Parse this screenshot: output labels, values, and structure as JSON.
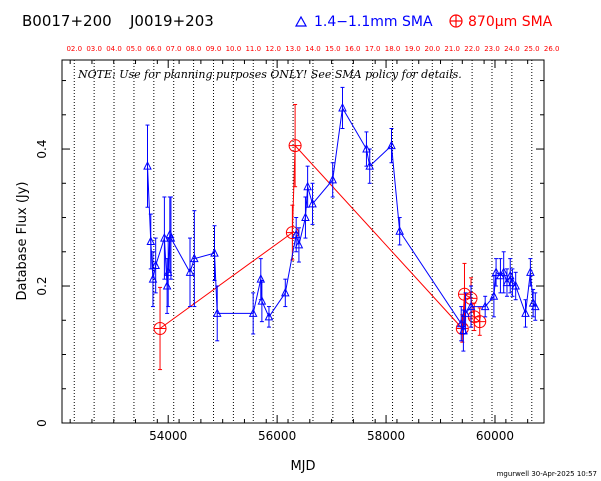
{
  "header": {
    "source1": "B0017+200",
    "source2": "J0019+203",
    "legend_blue": "1.4−1.1mm SMA",
    "legend_red": "870µm SMA"
  },
  "note": "NOTE: Use for planning purposes ONLY! See SMA policy for details.",
  "footer": "mgurwell 30-Apr-2025 10:57",
  "colors": {
    "blue": "#0000ff",
    "red": "#ff0000",
    "axis": "#000000"
  },
  "chart_data": {
    "type": "scatter",
    "xlabel": "MJD",
    "ylabel": "Database Flux (Jy)",
    "xlim": [
      52050,
      60900
    ],
    "ylim": [
      0,
      0.53
    ],
    "x_ticks": [
      54000,
      56000,
      58000,
      60000
    ],
    "y_ticks": [
      0,
      0.2,
      0.4
    ],
    "y_tick_labels": [
      "0",
      "0.2",
      "0.4"
    ],
    "x_tick_labels": [
      "54000",
      "56000",
      "58000",
      "60000"
    ],
    "top_axis_labels": [
      {
        "mjd": 52275,
        "label": "02.0"
      },
      {
        "mjd": 52640,
        "label": "03.0"
      },
      {
        "mjd": 53005,
        "label": "04.0"
      },
      {
        "mjd": 53371,
        "label": "05.0"
      },
      {
        "mjd": 53736,
        "label": "06.0"
      },
      {
        "mjd": 54101,
        "label": "07.0"
      },
      {
        "mjd": 54466,
        "label": "08.0"
      },
      {
        "mjd": 54832,
        "label": "09.0"
      },
      {
        "mjd": 55197,
        "label": "10.0"
      },
      {
        "mjd": 55562,
        "label": "11.0"
      },
      {
        "mjd": 55927,
        "label": "12.0"
      },
      {
        "mjd": 56293,
        "label": "13.0"
      },
      {
        "mjd": 56658,
        "label": "14.0"
      },
      {
        "mjd": 57023,
        "label": "15.0"
      },
      {
        "mjd": 57388,
        "label": "16.0"
      },
      {
        "mjd": 57754,
        "label": "17.0"
      },
      {
        "mjd": 58119,
        "label": "18.0"
      },
      {
        "mjd": 58484,
        "label": "19.0"
      },
      {
        "mjd": 58849,
        "label": "20.0"
      },
      {
        "mjd": 59215,
        "label": "21.0"
      },
      {
        "mjd": 59580,
        "label": "22.0"
      },
      {
        "mjd": 59945,
        "label": "23.0"
      },
      {
        "mjd": 60310,
        "label": "24.0"
      },
      {
        "mjd": 60676,
        "label": "25.0"
      },
      {
        "mjd": 61041,
        "label": "26.0"
      }
    ],
    "series": [
      {
        "name": "1.4−1.1mm SMA",
        "marker": "triangle",
        "color": "#0000ff",
        "points": [
          {
            "x": 53620,
            "y": 0.375,
            "err": 0.06
          },
          {
            "x": 53680,
            "y": 0.265,
            "err": 0.04
          },
          {
            "x": 53720,
            "y": 0.21,
            "err": 0.04
          },
          {
            "x": 53770,
            "y": 0.23,
            "err": 0.04
          },
          {
            "x": 53930,
            "y": 0.27,
            "err": 0.06
          },
          {
            "x": 53980,
            "y": 0.2,
            "err": 0.04
          },
          {
            "x": 54000,
            "y": 0.22,
            "err": 0.05
          },
          {
            "x": 54030,
            "y": 0.275,
            "err": 0.055
          },
          {
            "x": 54050,
            "y": 0.27,
            "err": 0.06
          },
          {
            "x": 54400,
            "y": 0.22,
            "err": 0.05
          },
          {
            "x": 54480,
            "y": 0.24,
            "err": 0.07
          },
          {
            "x": 54850,
            "y": 0.248,
            "err": 0.04
          },
          {
            "x": 54900,
            "y": 0.16,
            "err": 0.04
          },
          {
            "x": 55560,
            "y": 0.16,
            "err": 0.03
          },
          {
            "x": 55700,
            "y": 0.21,
            "err": 0.03
          },
          {
            "x": 55720,
            "y": 0.178,
            "err": 0.03
          },
          {
            "x": 55850,
            "y": 0.155,
            "err": 0.015
          },
          {
            "x": 56150,
            "y": 0.19,
            "err": 0.02
          },
          {
            "x": 56350,
            "y": 0.275,
            "err": 0.025
          },
          {
            "x": 56400,
            "y": 0.26,
            "err": 0.025
          },
          {
            "x": 56520,
            "y": 0.3,
            "err": 0.03
          },
          {
            "x": 56560,
            "y": 0.345,
            "err": 0.03
          },
          {
            "x": 56650,
            "y": 0.32,
            "err": 0.03
          },
          {
            "x": 57020,
            "y": 0.355,
            "err": 0.025
          },
          {
            "x": 57200,
            "y": 0.46,
            "err": 0.03
          },
          {
            "x": 57640,
            "y": 0.4,
            "err": 0.025
          },
          {
            "x": 57700,
            "y": 0.375,
            "err": 0.025
          },
          {
            "x": 58100,
            "y": 0.405,
            "err": 0.025
          },
          {
            "x": 58250,
            "y": 0.28,
            "err": 0.02
          },
          {
            "x": 59380,
            "y": 0.145,
            "err": 0.025
          },
          {
            "x": 59420,
            "y": 0.135,
            "err": 0.03
          },
          {
            "x": 59460,
            "y": 0.16,
            "err": 0.03
          },
          {
            "x": 59560,
            "y": 0.17,
            "err": 0.03
          },
          {
            "x": 59820,
            "y": 0.17,
            "err": 0.015
          },
          {
            "x": 59980,
            "y": 0.185,
            "err": 0.03
          },
          {
            "x": 60020,
            "y": 0.22,
            "err": 0.02
          },
          {
            "x": 60100,
            "y": 0.215,
            "err": 0.025
          },
          {
            "x": 60160,
            "y": 0.22,
            "err": 0.03
          },
          {
            "x": 60220,
            "y": 0.205,
            "err": 0.02
          },
          {
            "x": 60280,
            "y": 0.215,
            "err": 0.025
          },
          {
            "x": 60320,
            "y": 0.205,
            "err": 0.02
          },
          {
            "x": 60380,
            "y": 0.2,
            "err": 0.02
          },
          {
            "x": 60560,
            "y": 0.16,
            "err": 0.02
          },
          {
            "x": 60650,
            "y": 0.22,
            "err": 0.02
          },
          {
            "x": 60700,
            "y": 0.175,
            "err": 0.02
          },
          {
            "x": 60740,
            "y": 0.17,
            "err": 0.02
          }
        ]
      },
      {
        "name": "870µm SMA",
        "marker": "circle-plus",
        "color": "#ff0000",
        "points": [
          {
            "x": 53850,
            "y": 0.138,
            "err": 0.06
          },
          {
            "x": 56280,
            "y": 0.278,
            "err": 0.04
          },
          {
            "x": 56330,
            "y": 0.405,
            "err": 0.06
          },
          {
            "x": 59400,
            "y": 0.138,
            "err": 0.02
          },
          {
            "x": 59440,
            "y": 0.188,
            "err": 0.045
          },
          {
            "x": 59560,
            "y": 0.182,
            "err": 0.03
          },
          {
            "x": 59620,
            "y": 0.155,
            "err": 0.02
          },
          {
            "x": 59720,
            "y": 0.148,
            "err": 0.02
          }
        ]
      }
    ]
  }
}
